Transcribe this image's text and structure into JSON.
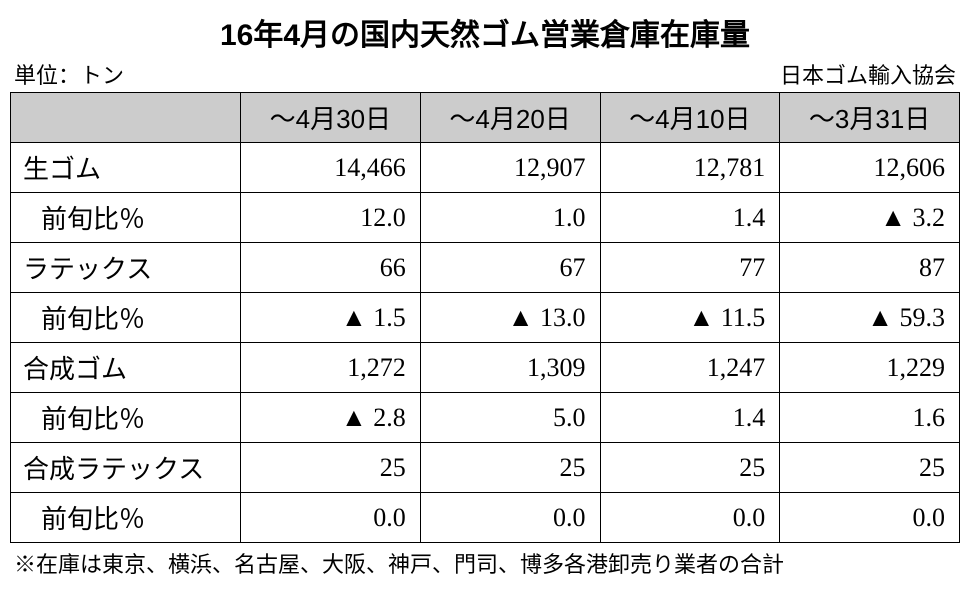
{
  "title": "16年4月の国内天然ゴム営業倉庫在庫量",
  "unit_label": "単位：トン",
  "source_label": "日本ゴム輸入協会",
  "footnote": "※在庫は東京、横浜、名古屋、大阪、神戸、門司、博多各港卸売り業者の合計",
  "columns": [
    "～4月30日",
    "～4月20日",
    "～4月10日",
    "～3月31日"
  ],
  "rows": [
    {
      "label": "生ゴム",
      "indent": false,
      "cells": [
        "14,466",
        "12,907",
        "12,781",
        "12,606"
      ]
    },
    {
      "label": "前旬比％",
      "indent": true,
      "cells": [
        "12.0",
        "1.0",
        "1.4",
        "▲ 3.2"
      ]
    },
    {
      "label": "ラテックス",
      "indent": false,
      "cells": [
        "66",
        "67",
        "77",
        "87"
      ]
    },
    {
      "label": "前旬比％",
      "indent": true,
      "cells": [
        "▲ 1.5",
        "▲ 13.0",
        "▲ 11.5",
        "▲ 59.3"
      ]
    },
    {
      "label": "合成ゴム",
      "indent": false,
      "cells": [
        "1,272",
        "1,309",
        "1,247",
        "1,229"
      ]
    },
    {
      "label": "前旬比％",
      "indent": true,
      "cells": [
        "▲ 2.8",
        "5.0",
        "1.4",
        "1.6"
      ]
    },
    {
      "label": "合成ラテックス",
      "indent": false,
      "cells": [
        "25",
        "25",
        "25",
        "25"
      ]
    },
    {
      "label": "前旬比％",
      "indent": true,
      "cells": [
        "0.0",
        "0.0",
        "0.0",
        "0.0"
      ]
    }
  ],
  "style": {
    "header_bg": "#cccccc",
    "border_color": "#000000",
    "title_fontsize": 30,
    "cell_fontsize": 26,
    "sub_fontsize": 22
  }
}
